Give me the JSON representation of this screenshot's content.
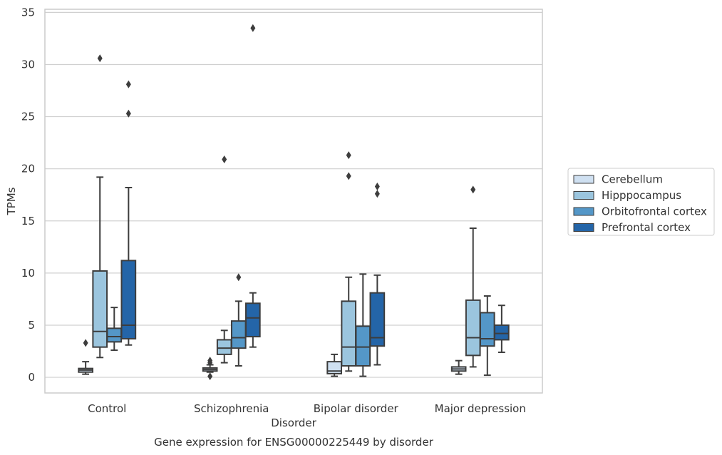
{
  "chart_data": {
    "type": "box",
    "title": "",
    "caption": "Gene expression for ENSG00000225449 by disorder",
    "xlabel": "Disorder",
    "ylabel": "TPMs",
    "ylim": [
      -1.5,
      35.3
    ],
    "yticks": [
      0,
      5,
      10,
      15,
      20,
      25,
      30,
      35
    ],
    "grid": "horizontal",
    "legend_position": "right",
    "categories": [
      "Control",
      "Schizophrenia",
      "Bipolar disorder",
      "Major depression"
    ],
    "series": [
      {
        "name": "Cerebellum",
        "color": "#cfe0f1",
        "boxes": [
          {
            "whislo": 0.3,
            "q1": 0.5,
            "med": 0.7,
            "q3": 0.85,
            "whishi": 1.5,
            "fliers": [
              3.3
            ]
          },
          {
            "whislo": 0.5,
            "q1": 0.6,
            "med": 0.75,
            "q3": 0.9,
            "whishi": 1.2,
            "fliers": [
              1.6,
              1.4,
              0.1
            ]
          },
          {
            "whislo": 0.1,
            "q1": 0.35,
            "med": 0.6,
            "q3": 1.5,
            "whishi": 2.2,
            "fliers": []
          },
          {
            "whislo": 0.3,
            "q1": 0.6,
            "med": 0.8,
            "q3": 1.0,
            "whishi": 1.6,
            "fliers": []
          }
        ]
      },
      {
        "name": "Hipppocampus",
        "color": "#9bc5de",
        "boxes": [
          {
            "whislo": 1.9,
            "q1": 2.9,
            "med": 4.4,
            "q3": 10.2,
            "whishi": 19.2,
            "fliers": [
              30.6
            ]
          },
          {
            "whislo": 1.4,
            "q1": 2.2,
            "med": 2.8,
            "q3": 3.6,
            "whishi": 4.5,
            "fliers": [
              20.9
            ]
          },
          {
            "whislo": 0.6,
            "q1": 1.1,
            "med": 2.9,
            "q3": 7.3,
            "whishi": 9.6,
            "fliers": [
              21.3,
              19.3
            ]
          },
          {
            "whislo": 1.0,
            "q1": 2.1,
            "med": 3.8,
            "q3": 7.4,
            "whishi": 14.3,
            "fliers": [
              18.0
            ]
          }
        ]
      },
      {
        "name": "Orbitofrontal cortex",
        "color": "#5497c8",
        "boxes": [
          {
            "whislo": 2.6,
            "q1": 3.4,
            "med": 3.9,
            "q3": 4.7,
            "whishi": 6.7,
            "fliers": []
          },
          {
            "whislo": 1.1,
            "q1": 2.8,
            "med": 3.8,
            "q3": 5.4,
            "whishi": 7.3,
            "fliers": [
              9.6
            ]
          },
          {
            "whislo": 0.1,
            "q1": 1.1,
            "med": 2.9,
            "q3": 4.9,
            "whishi": 9.9,
            "fliers": []
          },
          {
            "whislo": 0.2,
            "q1": 3.0,
            "med": 3.7,
            "q3": 6.2,
            "whishi": 7.8,
            "fliers": []
          }
        ]
      },
      {
        "name": "Prefrontal cortex",
        "color": "#2465a8",
        "boxes": [
          {
            "whislo": 3.1,
            "q1": 3.7,
            "med": 5.0,
            "q3": 11.2,
            "whishi": 18.2,
            "fliers": [
              28.1,
              25.3
            ]
          },
          {
            "whislo": 2.9,
            "q1": 3.9,
            "med": 5.7,
            "q3": 7.1,
            "whishi": 8.1,
            "fliers": [
              33.5
            ]
          },
          {
            "whislo": 1.2,
            "q1": 3.0,
            "med": 3.8,
            "q3": 8.1,
            "whishi": 9.8,
            "fliers": [
              18.3,
              17.6
            ]
          },
          {
            "whislo": 2.4,
            "q1": 3.6,
            "med": 4.2,
            "q3": 5.0,
            "whishi": 6.9,
            "fliers": []
          }
        ]
      }
    ]
  }
}
